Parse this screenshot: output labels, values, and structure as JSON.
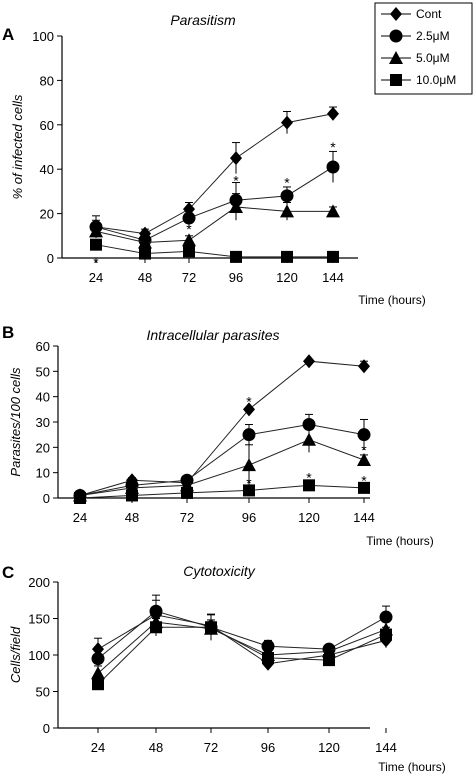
{
  "legend": {
    "items": [
      {
        "label": "Cont",
        "marker": "diamond"
      },
      {
        "label": "2.5μM",
        "marker": "circle"
      },
      {
        "label": "5.0μM",
        "marker": "triangle"
      },
      {
        "label": "10.0μM",
        "marker": "square"
      }
    ]
  },
  "chart_data": [
    {
      "panel": "A",
      "type": "line",
      "title": "Parasitism",
      "xlabel": "Time (hours)",
      "ylabel": "% of infected cells",
      "categories": [
        "24",
        "48",
        "72",
        "96",
        "120",
        "144"
      ],
      "ylim": [
        0,
        100
      ],
      "yticks": [
        0,
        20,
        40,
        60,
        80,
        100
      ],
      "series": [
        {
          "name": "Cont",
          "marker": "diamond",
          "values": [
            14,
            11,
            22,
            45,
            61,
            65
          ],
          "errors": [
            3,
            2,
            3,
            7,
            5,
            3
          ]
        },
        {
          "name": "2.5μM",
          "marker": "circle",
          "values": [
            14,
            8,
            18,
            26,
            28,
            41
          ],
          "errors": [
            5,
            2,
            4,
            8,
            4,
            7
          ]
        },
        {
          "name": "5.0μM",
          "marker": "triangle",
          "values": [
            12,
            7,
            8,
            23,
            21,
            21
          ],
          "errors": [
            3,
            2,
            2,
            6,
            4,
            2
          ]
        },
        {
          "name": "10.0μM",
          "marker": "square",
          "values": [
            6,
            2,
            3,
            0.5,
            0.5,
            0.5
          ],
          "errors": [
            2,
            1,
            1,
            0,
            0,
            0
          ]
        }
      ],
      "annotations": [
        {
          "text": "*",
          "x": "24",
          "y": -2
        },
        {
          "text": "*",
          "x": "72",
          "y": 13
        },
        {
          "text": "*",
          "x": "96",
          "y": 35
        },
        {
          "text": "*",
          "x": "120",
          "y": 34
        },
        {
          "text": "*",
          "x": "144",
          "y": 50
        }
      ]
    },
    {
      "panel": "B",
      "type": "line",
      "title": "Intracellular parasites",
      "xlabel": "Time (hours)",
      "ylabel": "Parasites/100 cells",
      "categories": [
        "24",
        "48",
        "72",
        "96",
        "120",
        "144"
      ],
      "ylim": [
        0,
        60
      ],
      "yticks": [
        0,
        10,
        20,
        30,
        40,
        50,
        60
      ],
      "series": [
        {
          "name": "Cont",
          "marker": "diamond",
          "values": [
            1,
            7,
            6,
            35,
            54,
            52
          ],
          "errors": [
            0,
            1,
            1,
            0,
            0,
            2
          ]
        },
        {
          "name": "2.5μM",
          "marker": "circle",
          "values": [
            1,
            5,
            7,
            25,
            29,
            25
          ],
          "errors": [
            0,
            1,
            1,
            4,
            4,
            6
          ]
        },
        {
          "name": "5.0μM",
          "marker": "triangle",
          "values": [
            1,
            4,
            5,
            13,
            23,
            15
          ],
          "errors": [
            0,
            1,
            1,
            8,
            5,
            2
          ]
        },
        {
          "name": "10.0μM",
          "marker": "square",
          "values": [
            0,
            1,
            2,
            3,
            5,
            4
          ],
          "errors": [
            0,
            0,
            0,
            0,
            0,
            0
          ]
        }
      ],
      "annotations": [
        {
          "text": "*",
          "x": "96",
          "y": 38
        },
        {
          "text": "*",
          "x": "96",
          "y": 6
        },
        {
          "text": "*",
          "x": "120",
          "y": 8
        },
        {
          "text": "*",
          "x": "144",
          "y": 7
        },
        {
          "text": "*",
          "x": "144",
          "y": 19
        }
      ]
    },
    {
      "panel": "C",
      "type": "line",
      "title": "Cytotoxicity",
      "xlabel": "Time (hours)",
      "ylabel": "Cells/field",
      "categories": [
        "24",
        "48",
        "72",
        "96",
        "120",
        "144"
      ],
      "ylim": [
        0,
        200
      ],
      "yticks": [
        0,
        50,
        100,
        150,
        200
      ],
      "series": [
        {
          "name": "Cont",
          "marker": "diamond",
          "values": [
            108,
            155,
            140,
            88,
            100,
            120
          ],
          "errors": [
            15,
            20,
            15,
            8,
            8,
            10
          ]
        },
        {
          "name": "2.5μM",
          "marker": "circle",
          "values": [
            95,
            160,
            138,
            112,
            108,
            152
          ],
          "errors": [
            15,
            22,
            18,
            8,
            6,
            15
          ]
        },
        {
          "name": "5.0μM",
          "marker": "triangle",
          "values": [
            75,
            145,
            136,
            100,
            105,
            135
          ],
          "errors": [
            10,
            15,
            12,
            8,
            6,
            12
          ]
        },
        {
          "name": "10.0μM",
          "marker": "square",
          "values": [
            60,
            138,
            138,
            96,
            93,
            128
          ],
          "errors": [
            8,
            12,
            10,
            8,
            6,
            10
          ]
        }
      ],
      "annotations": []
    }
  ]
}
